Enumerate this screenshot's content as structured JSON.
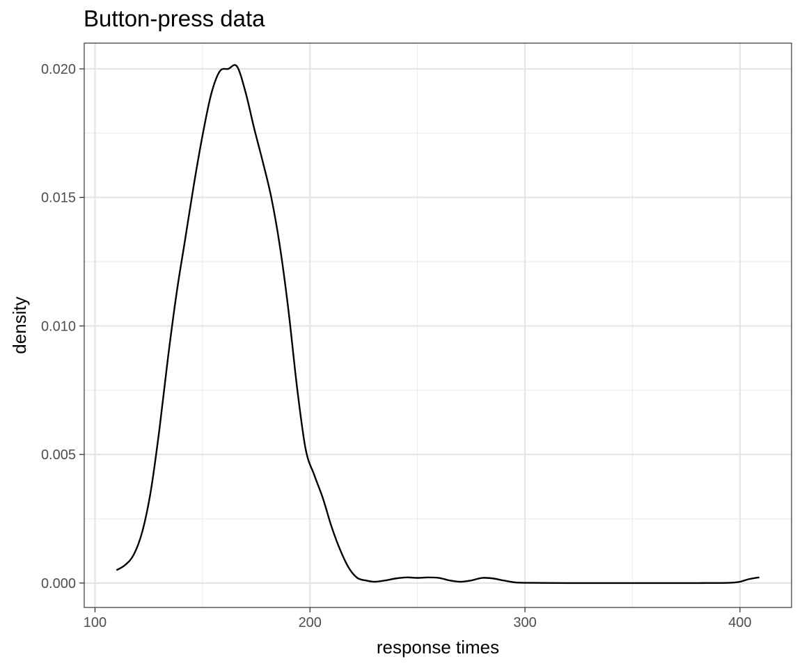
{
  "chart_data": {
    "type": "line",
    "title": "Button-press data",
    "xlabel": "response times",
    "ylabel": "density",
    "xlim": [
      95,
      424
    ],
    "ylim": [
      -0.00095,
      0.021
    ],
    "x_ticks": [
      100,
      200,
      300,
      400
    ],
    "x_tick_labels": [
      "100",
      "200",
      "300",
      "400"
    ],
    "y_ticks": [
      0.0,
      0.005,
      0.01,
      0.015,
      0.02
    ],
    "y_tick_labels": [
      "0.000",
      "0.005",
      "0.010",
      "0.015",
      "0.020"
    ],
    "grid": true,
    "legend": "none",
    "series": [
      {
        "color": "#000000",
        "x": [
          110,
          114,
          118,
          122,
          126,
          130,
          134,
          138,
          142,
          146,
          150,
          154,
          158,
          162,
          166,
          170,
          174,
          178,
          182,
          186,
          190,
          194,
          198,
          202,
          206,
          210,
          214,
          218,
          222,
          226,
          230,
          235,
          240,
          245,
          250,
          255,
          260,
          265,
          270,
          275,
          280,
          285,
          290,
          295,
          300,
          320,
          340,
          360,
          380,
          395,
          400,
          404,
          409
        ],
        "y": [
          0.0005,
          0.0007,
          0.0011,
          0.002,
          0.0036,
          0.006,
          0.0088,
          0.0113,
          0.0134,
          0.0155,
          0.0174,
          0.019,
          0.0199,
          0.02,
          0.0201,
          0.0191,
          0.0177,
          0.0164,
          0.015,
          0.0131,
          0.0106,
          0.0076,
          0.0052,
          0.0042,
          0.0033,
          0.0022,
          0.0013,
          0.0006,
          0.0002,
          0.0001,
          5e-05,
          0.0001,
          0.00018,
          0.00022,
          0.0002,
          0.00022,
          0.0002,
          0.0001,
          5e-05,
          0.0001,
          0.0002,
          0.00018,
          0.0001,
          3e-05,
          1e-05,
          0.0,
          0.0,
          0.0,
          0.0,
          1e-05,
          5e-05,
          0.00015,
          0.00022
        ]
      }
    ]
  }
}
